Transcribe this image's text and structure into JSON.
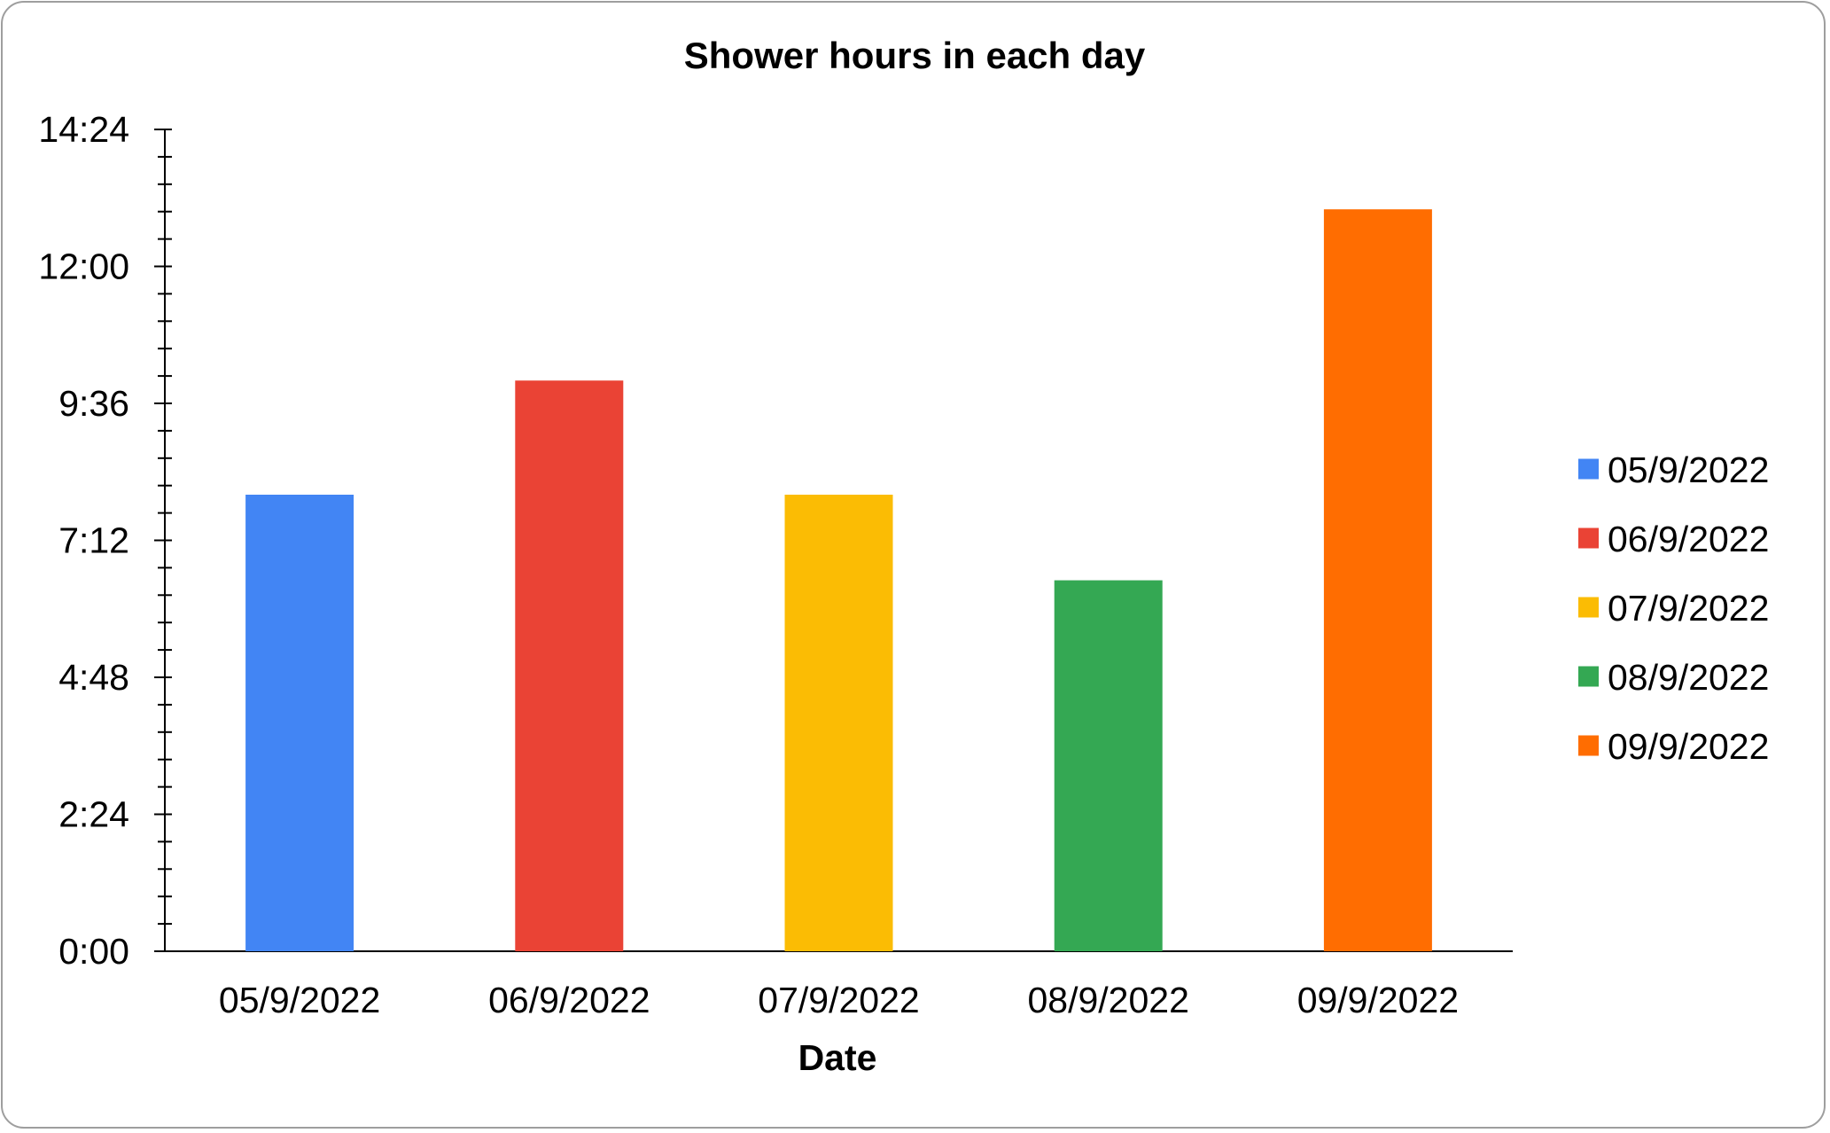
{
  "chart_data": {
    "type": "bar",
    "title": "Shower hours in each day",
    "xlabel": "Date",
    "ylabel": "",
    "categories": [
      "05/9/2022",
      "06/9/2022",
      "07/9/2022",
      "08/9/2022",
      "09/9/2022"
    ],
    "series": [
      {
        "values": [
          "8:00",
          "10:00",
          "8:00",
          "6:30",
          "13:00"
        ]
      }
    ],
    "colors": [
      "#4285f4",
      "#ea4335",
      "#fbbc04",
      "#34a853",
      "#ff6d01"
    ],
    "y_ticks": [
      "0:00",
      "2:24",
      "4:48",
      "7:12",
      "9:36",
      "12:00",
      "14:24"
    ],
    "ylim": [
      "0:00",
      "14:24"
    ],
    "grid": false,
    "legend": {
      "placement": "right",
      "entries": [
        "05/9/2022",
        "06/9/2022",
        "07/9/2022",
        "08/9/2022",
        "09/9/2022"
      ]
    }
  }
}
